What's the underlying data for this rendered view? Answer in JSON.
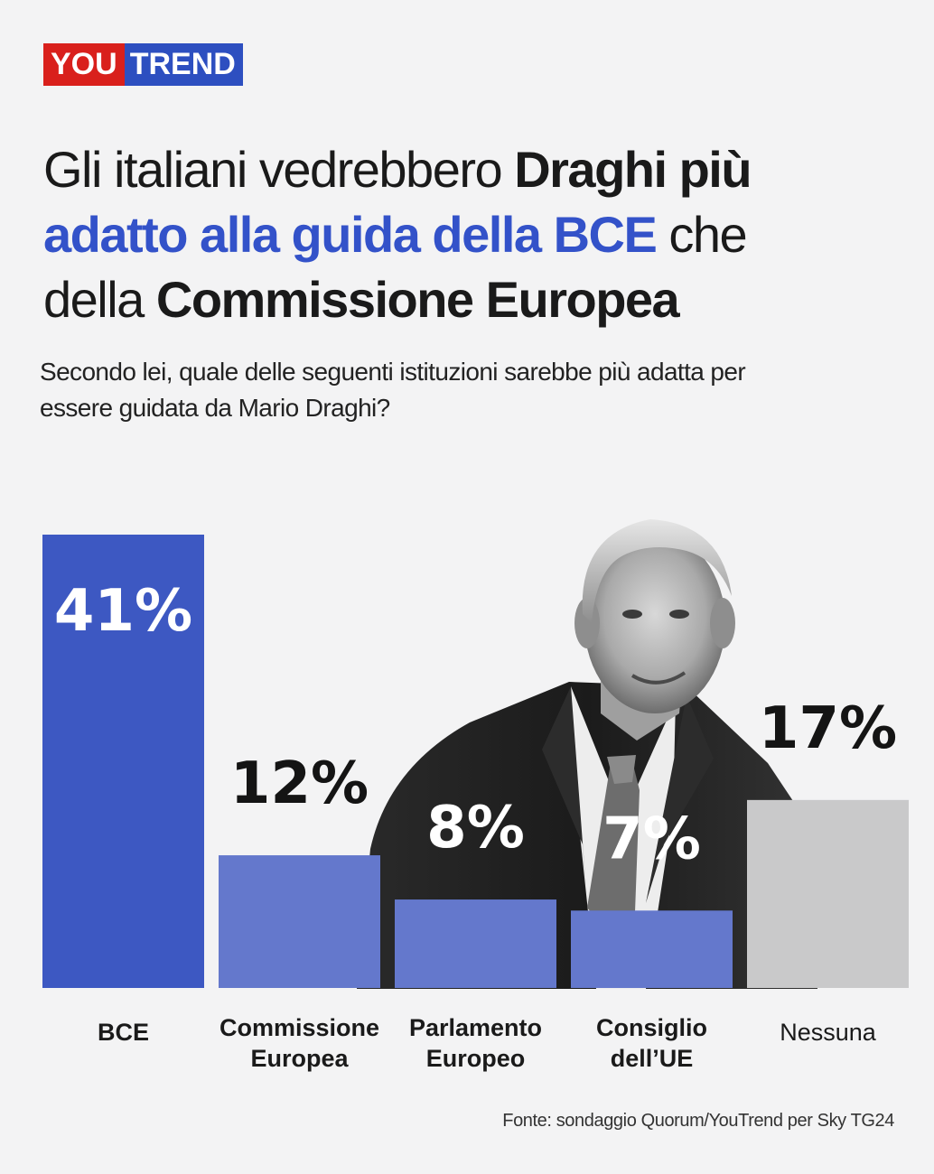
{
  "brand": {
    "you": "YOU",
    "trend": "TREND"
  },
  "headline": {
    "part1": "Gli italiani vedrebbero ",
    "part2": "Draghi più",
    "part3": "adatto alla guida della BCE",
    "part4": " che",
    "part5": "della ",
    "part6": "Commissione Europea"
  },
  "subtitle": "Secondo lei, quale delle seguenti istituzioni sarebbe più adatta per essere guidata da Mario Draghi?",
  "source": "Fonte: sondaggio Quorum/YouTrend per Sky TG24",
  "colors": {
    "primary": "#3d58c2",
    "secondary": "#6478cc",
    "none": "#c9c9ca"
  },
  "chart_data": {
    "type": "bar",
    "categories": [
      [
        "BCE"
      ],
      [
        "Commissione",
        "Europea"
      ],
      [
        "Parlamento",
        "Europeo"
      ],
      [
        "Consiglio",
        "dell’UE"
      ],
      [
        "Nessuna"
      ]
    ],
    "values": [
      41,
      12,
      8,
      7,
      17
    ],
    "labels": [
      "41%",
      "12%",
      "8%",
      "7%",
      "17%"
    ],
    "ylim": [
      0,
      41
    ],
    "grid": false
  }
}
